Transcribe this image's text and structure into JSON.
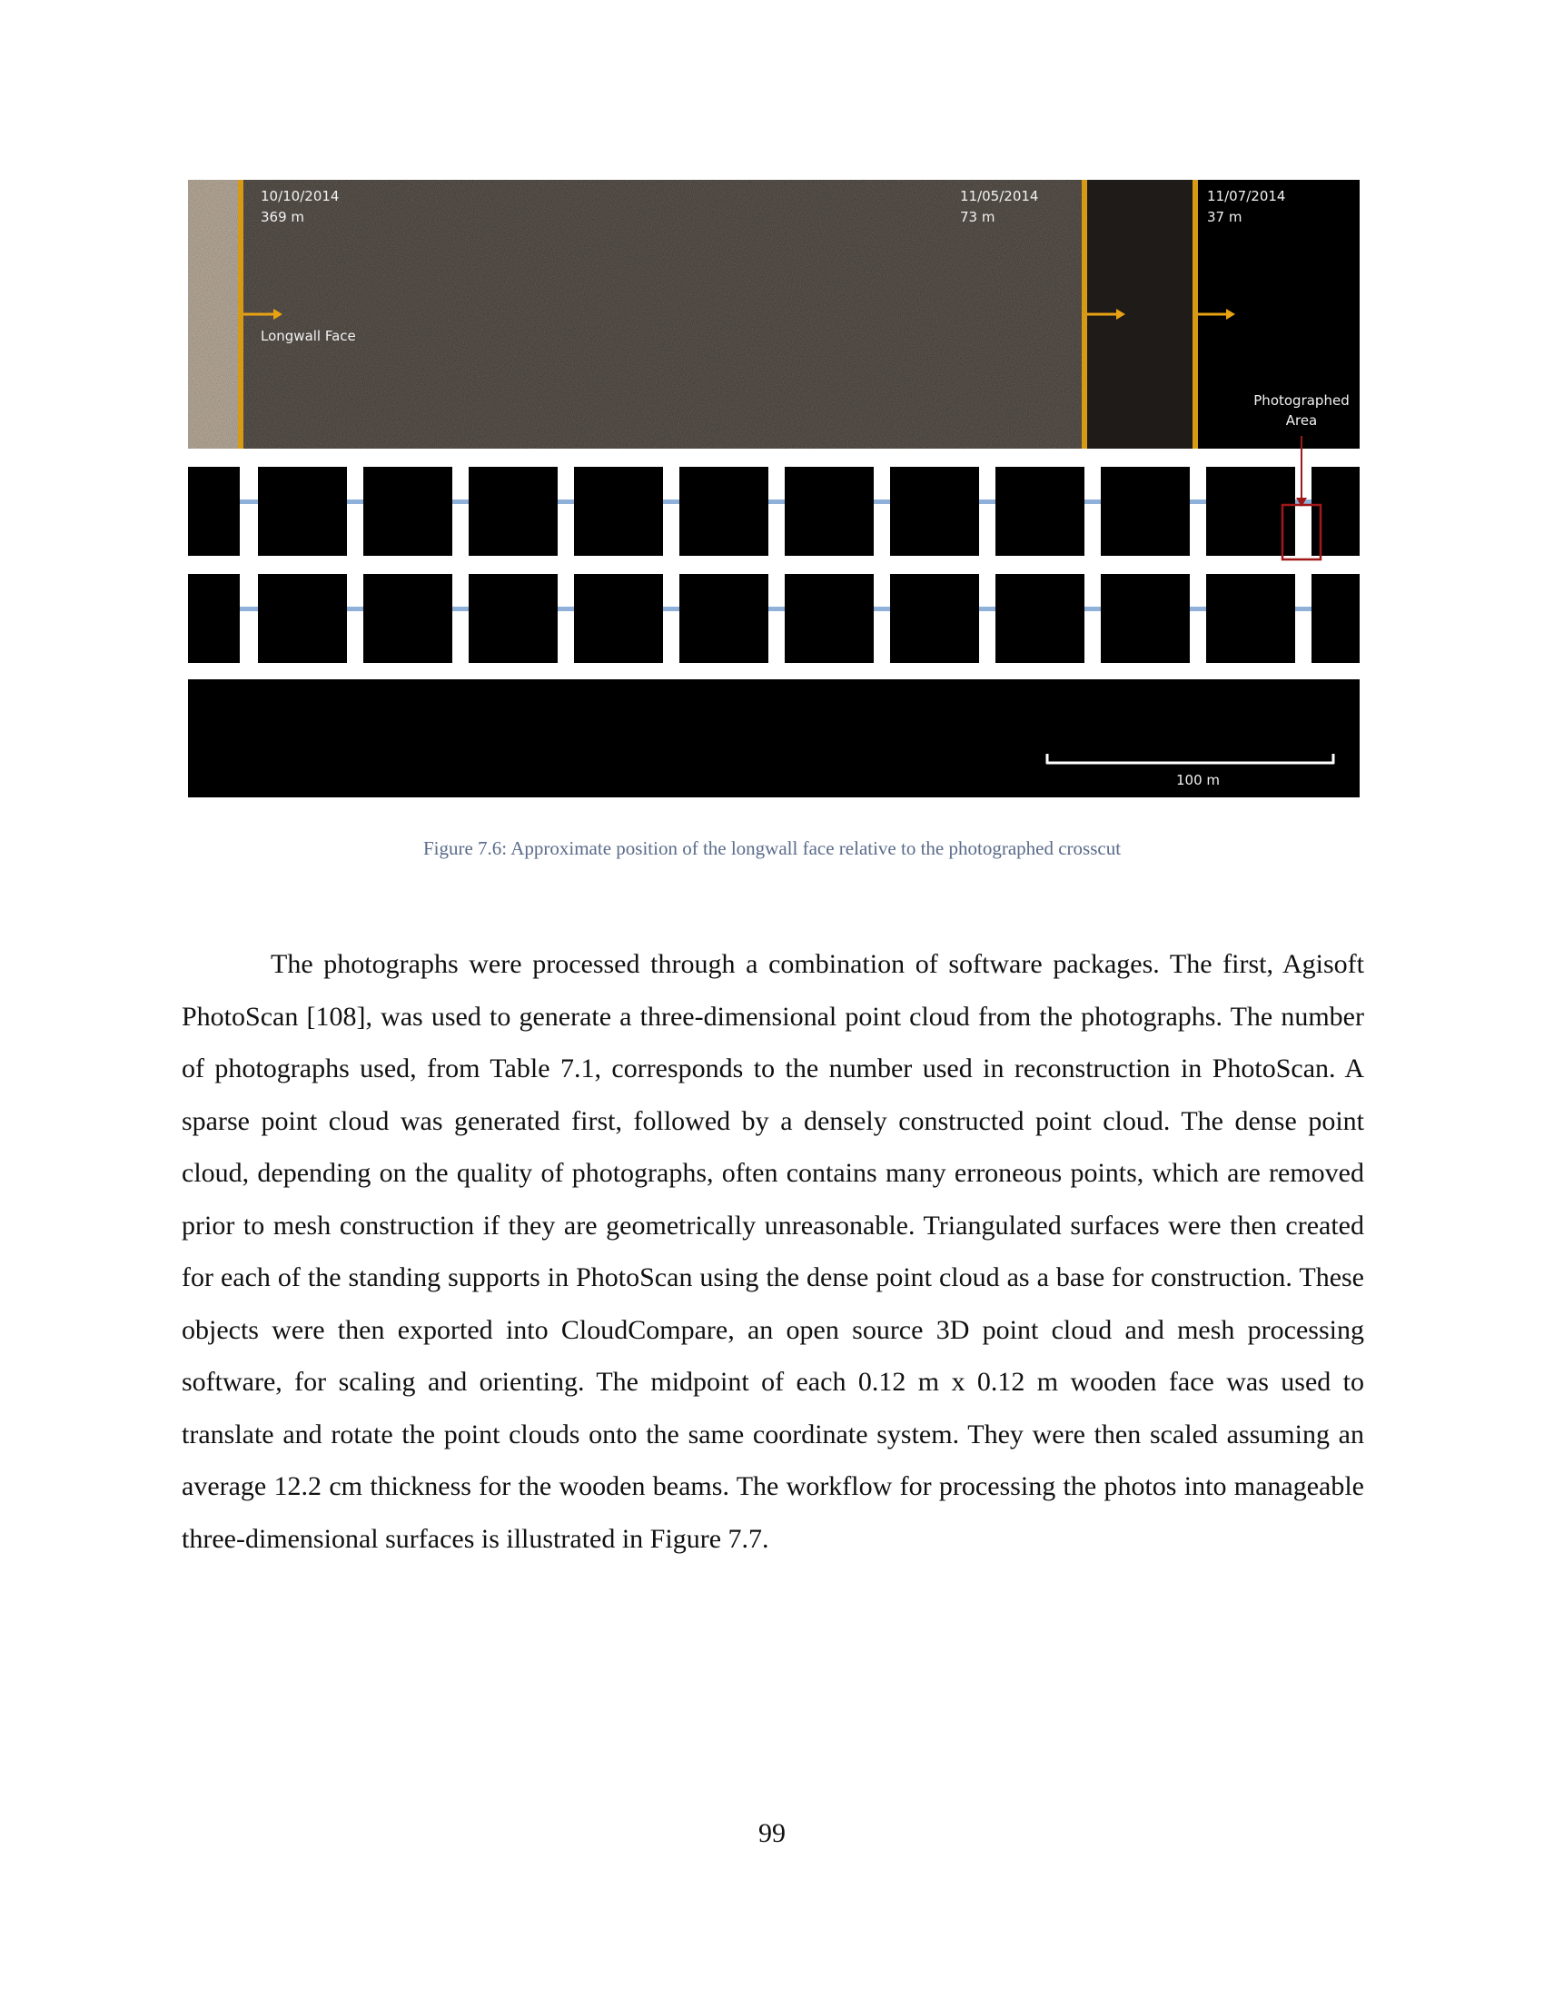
{
  "figure": {
    "markers": [
      {
        "date": "10/10/2014",
        "distance": "369 m"
      },
      {
        "date": "11/05/2014",
        "distance": "73 m"
      },
      {
        "date": "11/07/2014",
        "distance": "37 m"
      }
    ],
    "longwall_label": "Longwall Face",
    "photographed_label_line1": "Photographed",
    "photographed_label_line2": "Area",
    "scale_label": "100 m",
    "colors": {
      "panel": "#3a3430",
      "face_line": "#d69a14",
      "arrow": "#e9a312",
      "highlight_box": "#a01818",
      "pillar": "#000000",
      "connector": "#8fb0d8"
    }
  },
  "caption": "Figure 7.6:  Approximate position of the longwall face relative to the photographed crosscut",
  "body_paragraph": "The photographs were processed through a combination of software packages.  The first, Agisoft PhotoScan [108], was used to generate a three-dimensional point cloud from the photographs.  The number of photographs used, from Table 7.1, corresponds to the number used in reconstruction in PhotoScan.  A sparse point cloud was generated first, followed by a densely constructed point cloud.  The dense point cloud, depending on the quality of photographs, often contains many erroneous points, which are removed prior to mesh construction if they are geometrically unreasonable.  Triangulated surfaces were then created for each of the standing supports in PhotoScan using the dense point cloud as a base for construction.  These objects were then exported into CloudCompare, an open source 3D point cloud and mesh processing software, for scaling and orienting.  The midpoint of each 0.12 m x 0.12 m wooden face was used to translate and rotate the point clouds onto the same coordinate system.  They were then scaled assuming an average 12.2 cm thickness for the wooden beams.  The workflow for processing the photos into manageable three-dimensional surfaces is illustrated in Figure 7.7.",
  "page_number": "99"
}
